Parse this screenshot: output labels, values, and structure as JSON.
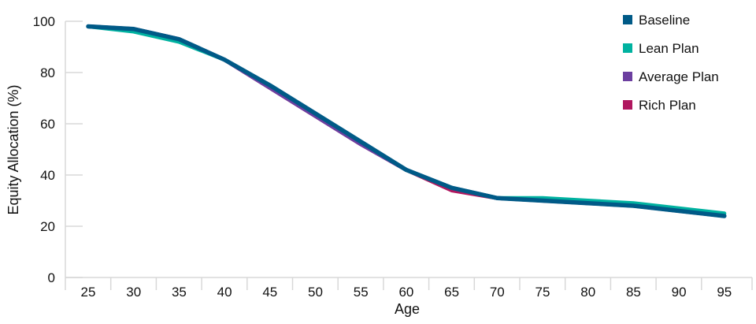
{
  "chart_data": {
    "type": "line",
    "xlabel": "Age",
    "ylabel": "Equity Allocation (%)",
    "categories": [
      "25",
      "30",
      "35",
      "40",
      "45",
      "50",
      "55",
      "60",
      "65",
      "70",
      "75",
      "80",
      "85",
      "90",
      "95"
    ],
    "ylim": [
      0,
      100
    ],
    "yticks": [
      "0",
      "20",
      "40",
      "60",
      "80",
      "100"
    ],
    "legend_position": "top-right",
    "series": [
      {
        "name": "Rich Plan",
        "color": "#B0175F",
        "values": [
          98,
          97,
          93,
          85,
          74,
          63,
          52,
          42,
          34,
          31,
          30,
          29,
          28,
          26,
          24
        ]
      },
      {
        "name": "Average Plan",
        "color": "#6C3FA0",
        "values": [
          98,
          97,
          93,
          85,
          74,
          63,
          52,
          42,
          35,
          31,
          30,
          29,
          28,
          26,
          24
        ]
      },
      {
        "name": "Lean Plan",
        "color": "#00B2A0",
        "values": [
          98,
          96,
          92,
          85,
          75,
          64,
          53,
          42,
          35,
          31,
          31,
          30,
          29,
          27,
          25
        ]
      },
      {
        "name": "Baseline",
        "color": "#005A87",
        "values": [
          98,
          97,
          93,
          85,
          75,
          64,
          53,
          42,
          35,
          31,
          30,
          29,
          28,
          26,
          24
        ]
      }
    ],
    "legend_order": [
      "Baseline",
      "Lean Plan",
      "Average Plan",
      "Rich Plan"
    ]
  }
}
